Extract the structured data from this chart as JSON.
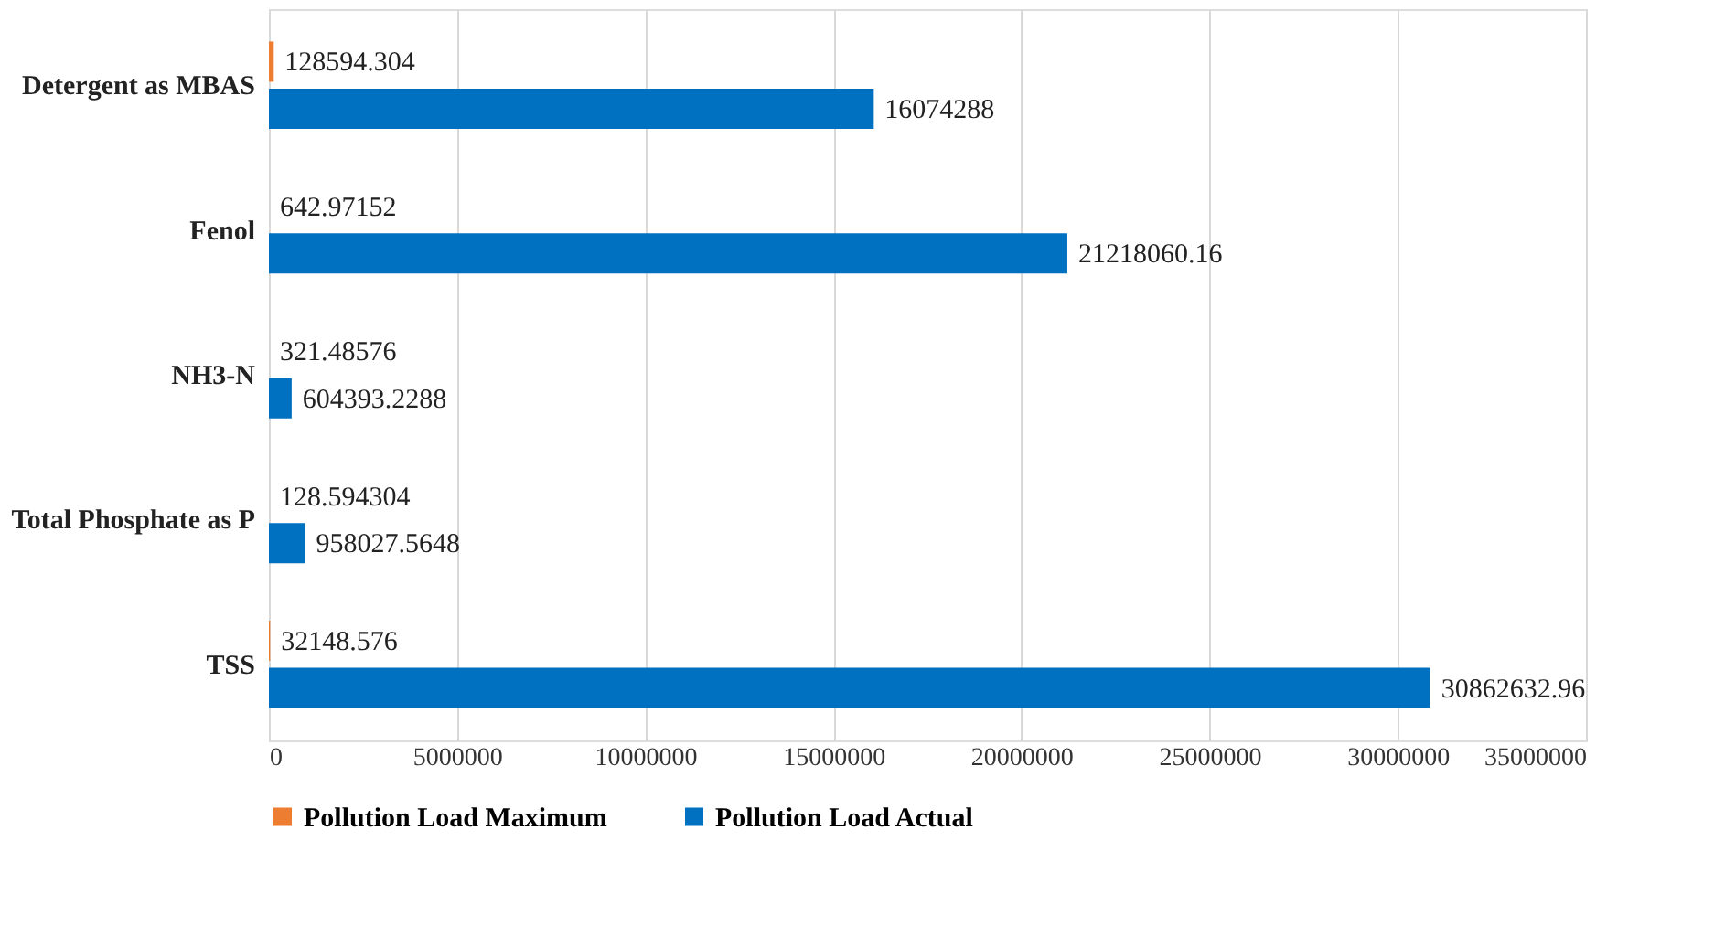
{
  "chart_data": {
    "type": "bar",
    "orientation": "horizontal",
    "categories": [
      "Detergent as MBAS",
      "Fenol",
      "NH3-N",
      "Total Phosphate as P",
      "TSS"
    ],
    "series": [
      {
        "name": "Pollution Load Maximum",
        "color": "#ed7d31",
        "values": [
          128594.304,
          642.97152,
          321.48576,
          128.594304,
          32148.576
        ]
      },
      {
        "name": "Pollution Load Actual",
        "color": "#0070c0",
        "values": [
          16074288,
          21218060.16,
          604393.2288,
          958027.5648,
          30862632.96
        ]
      }
    ],
    "xlim": [
      0,
      35000000
    ],
    "xticks": [
      0,
      5000000,
      10000000,
      15000000,
      20000000,
      25000000,
      30000000,
      35000000
    ],
    "grid": "x",
    "legend": "bottom",
    "data_labels": true
  }
}
